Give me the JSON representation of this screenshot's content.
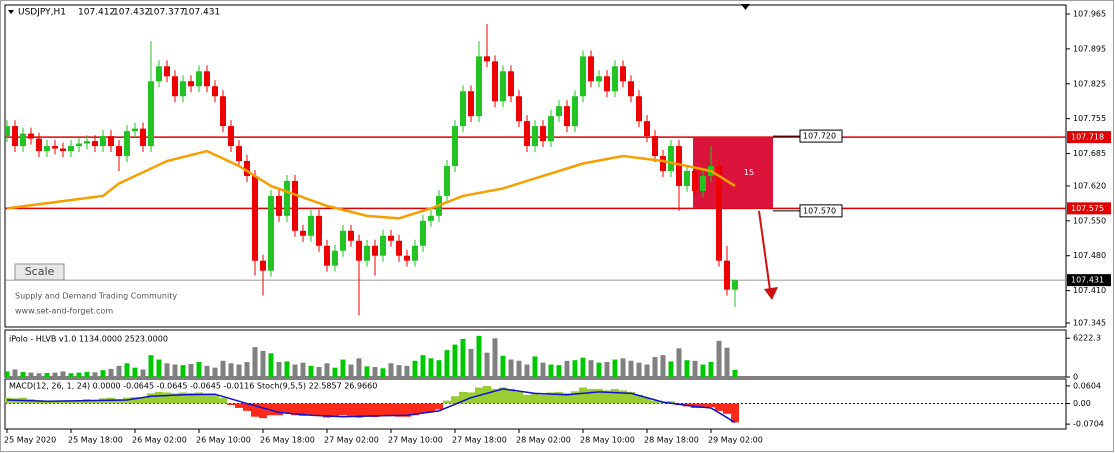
{
  "chart_data": [
    {
      "type": "candlestick",
      "symbol": "USDJPY,H1",
      "up_color": "#22c322",
      "down_color": "#ee0000",
      "ylim": [
        107.337,
        107.983
      ],
      "yticks": [
        107.965,
        107.895,
        107.825,
        107.755,
        107.685,
        {
          "value": 107.62,
          "label": "107.620"
        },
        {
          "value": 107.55,
          "label": "107.550"
        },
        {
          "value": 107.48,
          "label": "107.480"
        },
        {
          "value": 107.41,
          "label": "107.410"
        },
        107.345
      ],
      "xlim": [
        -0.25,
        132.375
      ],
      "xticks": [
        {
          "value": 0,
          "label": "25 May 2020"
        },
        {
          "value": 8,
          "label": "25 May 18:00"
        },
        {
          "value": 16,
          "label": "26 May 02:00"
        },
        {
          "value": 24,
          "label": "26 May 10:00"
        },
        {
          "value": 32,
          "label": "26 May 18:00"
        },
        {
          "value": 40,
          "label": "27 May 02:00"
        },
        {
          "value": 48,
          "label": "27 May 10:00"
        },
        {
          "value": 56,
          "label": "27 May 18:00"
        },
        {
          "value": 64,
          "label": "28 May 02:00"
        },
        {
          "value": 72,
          "label": "28 May 10:00"
        },
        {
          "value": 80,
          "label": "28 May 18:00"
        },
        {
          "value": 88,
          "label": "29 May 02:00"
        }
      ],
      "ohlc": [
        [
          107.72,
          107.752,
          107.708,
          107.74
        ],
        [
          107.74,
          107.752,
          107.688,
          107.7
        ],
        [
          107.7,
          107.737,
          107.688,
          107.725
        ],
        [
          107.725,
          107.737,
          107.703,
          107.715
        ],
        [
          107.715,
          107.727,
          107.678,
          107.69
        ],
        [
          107.69,
          107.712,
          107.678,
          107.7
        ],
        [
          107.7,
          107.712,
          107.683,
          107.695
        ],
        [
          107.695,
          107.707,
          107.678,
          107.69
        ],
        [
          107.69,
          107.712,
          107.678,
          107.7
        ],
        [
          107.7,
          107.717,
          107.688,
          107.705
        ],
        [
          107.705,
          107.722,
          107.693,
          107.71
        ],
        [
          107.71,
          107.722,
          107.688,
          107.7
        ],
        [
          107.7,
          107.732,
          107.688,
          107.72
        ],
        [
          107.72,
          107.732,
          107.688,
          107.7
        ],
        [
          107.7,
          107.712,
          107.65,
          107.68
        ],
        [
          107.68,
          107.742,
          107.668,
          107.73
        ],
        [
          107.73,
          107.747,
          107.718,
          107.735
        ],
        [
          107.735,
          107.747,
          107.688,
          107.7
        ],
        [
          107.7,
          107.91,
          107.688,
          107.83
        ],
        [
          107.83,
          107.872,
          107.818,
          107.86
        ],
        [
          107.86,
          107.872,
          107.828,
          107.84
        ],
        [
          107.84,
          107.852,
          107.788,
          107.8
        ],
        [
          107.8,
          107.842,
          107.788,
          107.83
        ],
        [
          107.83,
          107.842,
          107.808,
          107.82
        ],
        [
          107.82,
          107.862,
          107.808,
          107.85
        ],
        [
          107.85,
          107.862,
          107.808,
          107.82
        ],
        [
          107.82,
          107.832,
          107.788,
          107.8
        ],
        [
          107.8,
          107.812,
          107.728,
          107.74
        ],
        [
          107.74,
          107.752,
          107.688,
          107.7
        ],
        [
          107.7,
          107.712,
          107.658,
          107.67
        ],
        [
          107.67,
          107.682,
          107.628,
          107.64
        ],
        [
          107.64,
          107.652,
          107.44,
          107.47
        ],
        [
          107.47,
          107.482,
          107.4,
          107.45
        ],
        [
          107.45,
          107.612,
          107.438,
          107.6
        ],
        [
          107.6,
          107.612,
          107.548,
          107.56
        ],
        [
          107.56,
          107.642,
          107.548,
          107.63
        ],
        [
          107.63,
          107.642,
          107.518,
          107.53
        ],
        [
          107.53,
          107.542,
          107.508,
          107.52
        ],
        [
          107.52,
          107.572,
          107.508,
          107.56
        ],
        [
          107.56,
          107.572,
          107.488,
          107.5
        ],
        [
          107.5,
          107.512,
          107.448,
          107.46
        ],
        [
          107.46,
          107.502,
          107.448,
          107.49
        ],
        [
          107.49,
          107.542,
          107.478,
          107.53
        ],
        [
          107.53,
          107.542,
          107.498,
          107.51
        ],
        [
          107.51,
          107.522,
          107.36,
          107.47
        ],
        [
          107.47,
          107.512,
          107.458,
          107.5
        ],
        [
          107.5,
          107.512,
          107.44,
          107.48
        ],
        [
          107.48,
          107.532,
          107.468,
          107.52
        ],
        [
          107.52,
          107.532,
          107.498,
          107.51
        ],
        [
          107.51,
          107.522,
          107.468,
          107.48
        ],
        [
          107.48,
          107.492,
          107.458,
          107.47
        ],
        [
          107.47,
          107.512,
          107.458,
          107.5
        ],
        [
          107.5,
          107.562,
          107.488,
          107.55
        ],
        [
          107.55,
          107.572,
          107.538,
          107.56
        ],
        [
          107.56,
          107.612,
          107.548,
          107.6
        ],
        [
          107.6,
          107.672,
          107.588,
          107.66
        ],
        [
          107.66,
          107.752,
          107.648,
          107.74
        ],
        [
          107.74,
          107.822,
          107.728,
          107.81
        ],
        [
          107.81,
          107.822,
          107.748,
          107.76
        ],
        [
          107.76,
          107.91,
          107.748,
          107.88
        ],
        [
          107.88,
          107.945,
          107.858,
          107.87
        ],
        [
          107.87,
          107.882,
          107.778,
          107.79
        ],
        [
          107.79,
          107.862,
          107.778,
          107.85
        ],
        [
          107.85,
          107.862,
          107.788,
          107.8
        ],
        [
          107.8,
          107.812,
          107.738,
          107.75
        ],
        [
          107.75,
          107.762,
          107.688,
          107.7
        ],
        [
          107.7,
          107.752,
          107.688,
          107.74
        ],
        [
          107.74,
          107.752,
          107.698,
          107.71
        ],
        [
          107.71,
          107.772,
          107.698,
          107.76
        ],
        [
          107.76,
          107.792,
          107.748,
          107.78
        ],
        [
          107.78,
          107.792,
          107.728,
          107.74
        ],
        [
          107.74,
          107.812,
          107.728,
          107.8
        ],
        [
          107.8,
          107.892,
          107.788,
          107.88
        ],
        [
          107.88,
          107.892,
          107.818,
          107.83
        ],
        [
          107.83,
          107.852,
          107.818,
          107.84
        ],
        [
          107.84,
          107.852,
          107.798,
          107.81
        ],
        [
          107.81,
          107.872,
          107.798,
          107.86
        ],
        [
          107.86,
          107.872,
          107.818,
          107.83
        ],
        [
          107.83,
          107.842,
          107.788,
          107.8
        ],
        [
          107.8,
          107.812,
          107.738,
          107.75
        ],
        [
          107.75,
          107.762,
          107.708,
          107.72
        ],
        [
          107.72,
          107.732,
          107.668,
          107.68
        ],
        [
          107.68,
          107.692,
          107.638,
          107.65
        ],
        [
          107.65,
          107.712,
          107.638,
          107.7
        ],
        [
          107.7,
          107.712,
          107.57,
          107.62
        ],
        [
          107.62,
          107.662,
          107.608,
          107.65
        ],
        [
          107.65,
          107.662,
          107.598,
          107.61
        ],
        [
          107.61,
          107.652,
          107.598,
          107.64
        ],
        [
          107.64,
          107.7,
          107.628,
          107.66
        ],
        [
          107.66,
          107.672,
          107.458,
          107.47
        ],
        [
          107.47,
          107.5,
          107.4,
          107.412
        ],
        [
          107.412,
          107.432,
          107.377,
          107.431
        ]
      ],
      "moving_average": {
        "color": "#f5a000",
        "x": [
          0,
          12,
          14,
          20,
          25,
          29,
          33,
          40,
          45,
          49,
          53,
          57,
          62,
          67,
          72,
          77,
          82,
          85,
          88,
          91
        ],
        "values": [
          107.575,
          107.6,
          107.625,
          107.67,
          107.69,
          107.66,
          107.62,
          107.58,
          107.56,
          107.555,
          107.575,
          107.6,
          107.615,
          107.64,
          107.665,
          107.68,
          107.67,
          107.66,
          107.65,
          107.62
        ]
      },
      "levels": [
        {
          "value": 107.718,
          "color": "#e00000"
        },
        {
          "value": 107.575,
          "color": "#e00000"
        }
      ],
      "zone": {
        "text": "15",
        "color": "#dc143c"
      },
      "zone_labels": [
        {
          "value": 107.72,
          "label": "107.720"
        },
        {
          "value": 107.57,
          "label": "107.570"
        }
      ],
      "button": "Scale",
      "watermark": [
        "Supply and Demand Trading Community",
        "www.set-and-forget.com"
      ]
    },
    {
      "type": "bar",
      "title": "iPolo - HLVB v1.0 1134.0000 2523.0000",
      "up_color": "#00c800",
      "down_color": "#808080",
      "ylim": [
        0,
        7540
      ],
      "yticks": [
        6222.3,
        0
      ],
      "values": [
        900,
        1200,
        800,
        700,
        600,
        650,
        700,
        900,
        600,
        700,
        800,
        750,
        1100,
        1300,
        1800,
        2200,
        1500,
        1200,
        3500,
        2800,
        2200,
        2000,
        1900,
        2100,
        2400,
        1800,
        1500,
        2600,
        2200,
        2000,
        2400,
        4800,
        4200,
        3800,
        2400,
        2500,
        2000,
        2300,
        1800,
        1600,
        2200,
        1500,
        2800,
        2000,
        3000,
        1700,
        1600,
        1400,
        2200,
        1900,
        1800,
        2600,
        3500,
        3000,
        2700,
        4300,
        5200,
        6100,
        4500,
        6600,
        3900,
        6200,
        3400,
        2800,
        2600,
        2000,
        3300,
        2300,
        2000,
        1900,
        2600,
        2700,
        3100,
        2700,
        2300,
        2400,
        2800,
        3000,
        2600,
        2300,
        2000,
        3200,
        3500,
        2500,
        4600,
        2700,
        2600,
        2000,
        2400,
        5800,
        4700,
        1134
      ]
    },
    {
      "type": "macd",
      "title": "MACD(12, 26, 1, 24) 0.0000 -0.0645 -0.0645 -0.0645 -0.0116  Stoch(9,5,5) 22.5857 26.9660",
      "positive_color": "#9acd32",
      "negative_color": "#ff2a1a",
      "line_color": "#1010d0",
      "ylim": [
        -0.087,
        0.084
      ],
      "yticks": [
        0.0604,
        {
          "value": 0,
          "label": "0.00"
        },
        -0.0704
      ],
      "values": [
        0.02,
        0.018,
        0.02,
        0.015,
        0.012,
        0.01,
        0.01,
        0.008,
        0.01,
        0.012,
        0.015,
        0.012,
        0.018,
        0.02,
        0.015,
        0.02,
        0.022,
        0.02,
        0.035,
        0.04,
        0.038,
        0.035,
        0.038,
        0.036,
        0.038,
        0.034,
        0.03,
        0.02,
        -0.005,
        -0.015,
        -0.025,
        -0.045,
        -0.05,
        -0.04,
        -0.04,
        -0.032,
        -0.04,
        -0.042,
        -0.038,
        -0.042,
        -0.048,
        -0.045,
        -0.04,
        -0.042,
        -0.048,
        -0.045,
        -0.046,
        -0.042,
        -0.043,
        -0.045,
        -0.045,
        -0.04,
        -0.032,
        -0.028,
        -0.02,
        0.01,
        0.025,
        0.04,
        0.038,
        0.055,
        0.06,
        0.05,
        0.055,
        0.05,
        0.04,
        0.03,
        0.035,
        0.03,
        0.038,
        0.04,
        0.035,
        0.042,
        0.055,
        0.05,
        0.05,
        0.045,
        0.05,
        0.045,
        0.04,
        0.03,
        0.02,
        0.01,
        0.004,
        0.008,
        -0.005,
        -0.01,
        -0.015,
        -0.015,
        -0.012,
        -0.025,
        -0.035,
        -0.0645
      ],
      "signal": {
        "x": [
          0,
          5,
          10,
          15,
          18,
          22,
          26,
          30,
          34,
          38,
          42,
          46,
          50,
          54,
          58,
          62,
          66,
          70,
          74,
          78,
          82,
          86,
          88,
          91
        ],
        "values": [
          0.012,
          0.008,
          0.01,
          0.012,
          0.025,
          0.03,
          0.032,
          0.0,
          -0.03,
          -0.04,
          -0.045,
          -0.042,
          -0.04,
          -0.025,
          0.02,
          0.05,
          0.035,
          0.03,
          0.04,
          0.035,
          0.005,
          -0.01,
          -0.015,
          -0.0645
        ]
      }
    }
  ]
}
